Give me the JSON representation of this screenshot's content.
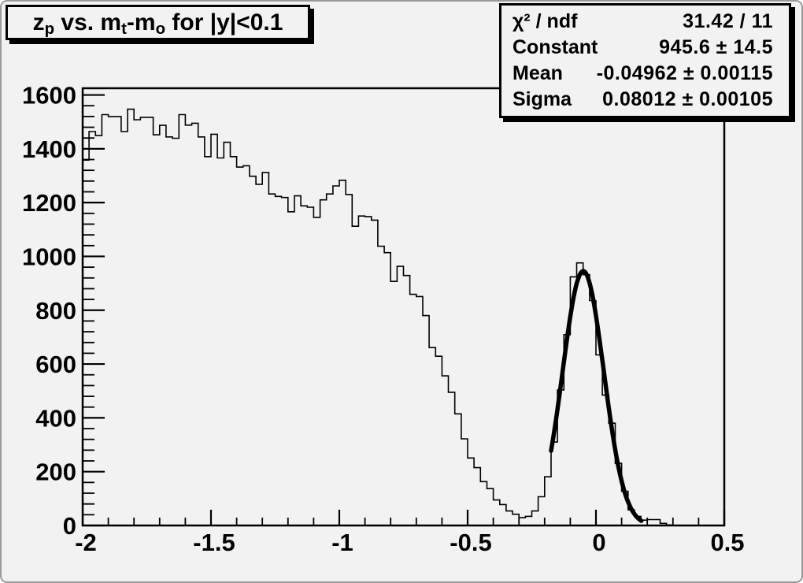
{
  "window": {
    "bg": "#f2f2f2",
    "frame_color": "#000000"
  },
  "title_box": {
    "segments": [
      {
        "t": "z"
      },
      {
        "t": "p",
        "sub": true
      },
      {
        "t": " vs. m"
      },
      {
        "t": "t",
        "sub": true
      },
      {
        "t": "-m"
      },
      {
        "t": "o",
        "sub": true
      },
      {
        "t": " for |y|<0.1"
      }
    ]
  },
  "stats_box": {
    "rows": [
      {
        "label": "χ² / ndf",
        "value": "31.42 / 11"
      },
      {
        "label": "Constant",
        "value": "945.6 ± 14.5"
      },
      {
        "label": "Mean",
        "value": "-0.04962 ± 0.00115"
      },
      {
        "label": "Sigma",
        "value": "0.08012 ± 0.00105"
      }
    ]
  },
  "chart_data": {
    "type": "bar",
    "title": "z_p vs. m_t-m_o for |y|<0.1",
    "xlabel": "",
    "ylabel": "",
    "xlim": [
      -2,
      0.5
    ],
    "ylim": [
      0,
      1625
    ],
    "grid": false,
    "legend": false,
    "x_major_ticks": [
      -2,
      -1.5,
      -1,
      -0.5,
      0,
      0.5
    ],
    "x_tick_labels": [
      "-2",
      "-1.5",
      "-1",
      "-0.5",
      "0",
      "0.5"
    ],
    "x_minor_step": 0.1,
    "y_major_ticks": [
      0,
      200,
      400,
      600,
      800,
      1000,
      1200,
      1400,
      1600
    ],
    "y_tick_labels": [
      "0",
      "200",
      "400",
      "600",
      "800",
      "1000",
      "1200",
      "1400",
      "1600"
    ],
    "y_minor_step": 40,
    "line_color": "#000000",
    "fit_color": "#000000",
    "histogram": {
      "bin_start": -2.0,
      "bin_width": 0.025,
      "counts": [
        1358,
        1464,
        1449,
        1527,
        1520,
        1520,
        1464,
        1547,
        1508,
        1517,
        1517,
        1452,
        1487,
        1444,
        1439,
        1527,
        1488,
        1495,
        1444,
        1371,
        1454,
        1366,
        1424,
        1371,
        1332,
        1337,
        1298,
        1268,
        1312,
        1232,
        1223,
        1219,
        1166,
        1225,
        1188,
        1183,
        1145,
        1210,
        1232,
        1262,
        1283,
        1230,
        1112,
        1150,
        1148,
        1135,
        1038,
        1014,
        907,
        963,
        929,
        859,
        851,
        780,
        661,
        629,
        556,
        495,
        415,
        322,
        251,
        215,
        163,
        137,
        95,
        78,
        54,
        42,
        29,
        34,
        54,
        107,
        181,
        310,
        504,
        709,
        924,
        976,
        932,
        836,
        634,
        485,
        380,
        231,
        127,
        58,
        34,
        20,
        22,
        22,
        8,
        2,
        0,
        0,
        0,
        0,
        0,
        0,
        0,
        0
      ]
    },
    "fit": {
      "model": "gaussian",
      "chi2": 31.42,
      "ndf": 11,
      "constant": 945.6,
      "mean": -0.04962,
      "sigma": 0.08012,
      "draw_range": [
        -0.175,
        0.18
      ]
    }
  }
}
